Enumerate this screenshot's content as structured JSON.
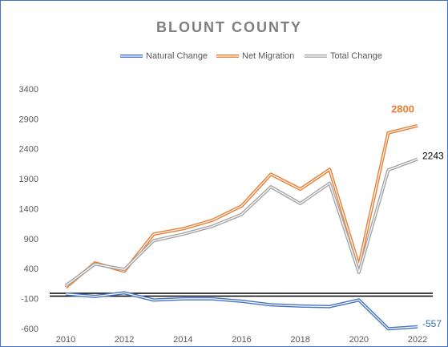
{
  "chart_data": {
    "type": "line",
    "title": "BLOUNT COUNTY",
    "x": [
      2010,
      2011,
      2012,
      2013,
      2014,
      2015,
      2016,
      2017,
      2018,
      2019,
      2020,
      2021,
      2022
    ],
    "xticks": [
      2010,
      2012,
      2014,
      2016,
      2018,
      2020,
      2022
    ],
    "xlim": [
      2010,
      2022
    ],
    "ylim": [
      -600,
      3400
    ],
    "yticks": [
      -600,
      -100,
      400,
      900,
      1400,
      1900,
      2400,
      2900,
      3400
    ],
    "grid": false,
    "legend": "top",
    "label_last": true,
    "series": [
      {
        "name": "Natural Change",
        "color": "#4472c4",
        "label_color": "#2e75b6",
        "values": [
          -10,
          -50,
          10,
          -110,
          -90,
          -90,
          -130,
          -190,
          -210,
          -220,
          -110,
          -590,
          -557
        ]
      },
      {
        "name": "Net Migration",
        "color": "#ed7d31",
        "label_color": "#ed7d31",
        "values": [
          100,
          510,
          370,
          990,
          1080,
          1220,
          1460,
          1990,
          1740,
          2070,
          460,
          2680,
          2800
        ]
      },
      {
        "name": "Total Change",
        "color": "#a5a5a5",
        "label_color": "#000000",
        "values": [
          130,
          490,
          400,
          880,
          990,
          1120,
          1320,
          1780,
          1500,
          1840,
          350,
          2060,
          2243
        ]
      }
    ]
  }
}
